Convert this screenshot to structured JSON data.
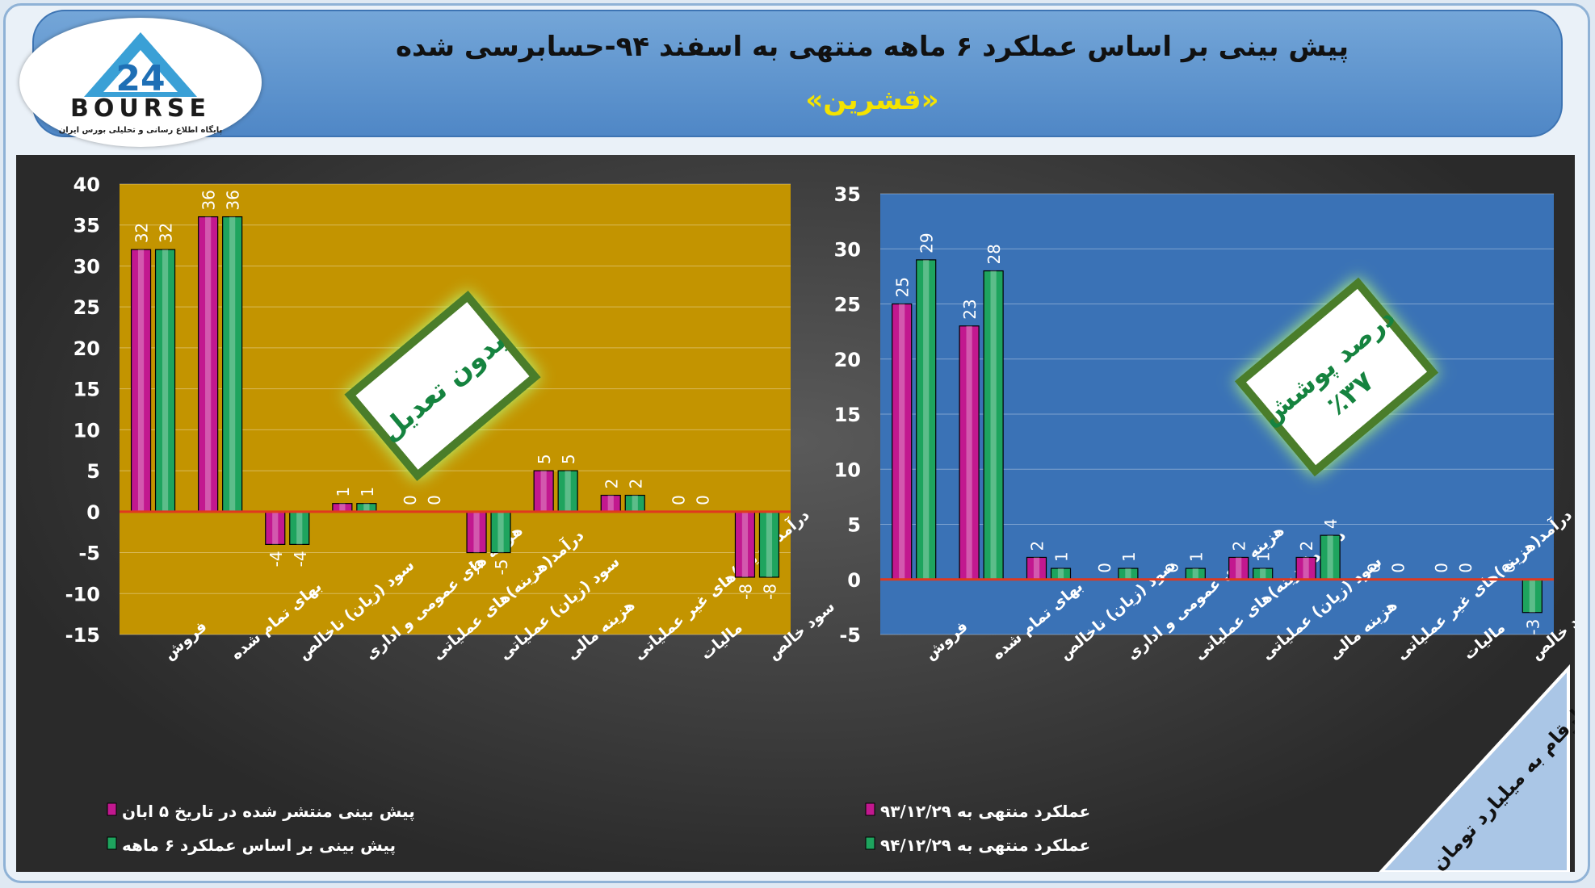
{
  "header": {
    "title": "پیش بینی بر اساس عملکرد ۶ ماهه منتهی به اسفند ۹۴-حسابرسی شده",
    "subtitle": "«قشرین»"
  },
  "logo": {
    "brand": "BOURSE",
    "number": "24",
    "tagline": "پایگاه اطلاع رسانی و تحلیلی بورس ایران"
  },
  "notes": {
    "left_badge": "بدون تعدیل",
    "right_badge_line1": "درصد پوشش",
    "right_badge_line2": "٪۳۷",
    "units_ribbon": "ارقام به میلیارد تومان"
  },
  "colors": {
    "magenta": "#c2188f",
    "green": "#1ea45e",
    "left_plot_bg": "#c39400",
    "right_plot_bg": "#3a72b6",
    "zero_line": "#e0391e",
    "ribbon": "#aac6e6"
  },
  "chart_data": [
    {
      "type": "bar",
      "categories": [
        "فروش",
        "بهای تمام شده",
        "سود (زیان) ناخالص",
        "هزینه های عمومی و اداری",
        "درآمد(هزینه)های عملیاتی",
        "سود (زیان) عملیاتی",
        "هزینه مالی",
        "درآمد(هزینه)های غیر عملیاتی",
        "مالیات",
        "سود خالص"
      ],
      "series": [
        {
          "name": "پیش بینی منتشر شده در تاریخ ۵ ابان",
          "values": [
            32,
            36,
            -4,
            1,
            0,
            -5,
            5,
            2,
            0,
            -8
          ]
        },
        {
          "name": "پیش بینی بر اساس عملکرد ۶ ماهه",
          "values": [
            32,
            36,
            -4,
            1,
            0,
            -5,
            5,
            2,
            0,
            -8
          ]
        }
      ],
      "ylim": [
        -15,
        40
      ],
      "yticks": [
        40,
        35,
        30,
        25,
        20,
        15,
        10,
        5,
        0,
        -5,
        -10,
        -15
      ],
      "grid": true,
      "legend": "bottom-left"
    },
    {
      "type": "bar",
      "categories": [
        "فروش",
        "بهای تمام شده",
        "سود (زیان) ناخالص",
        "هزینه های عمومی و اداری",
        "درآمد(هزینه)های عملیاتی",
        "سود (زیان) عملیاتی",
        "هزینه مالی",
        "درآمد(هزینه)های غیر عملیاتی",
        "مالیات",
        "سود خالص"
      ],
      "series": [
        {
          "name": "عملکرد منتهی به ۹۳/۱۲/۲۹",
          "values": [
            25,
            23,
            2,
            0,
            0,
            2,
            2,
            0,
            0,
            0
          ]
        },
        {
          "name": "عملکرد منتهی به ۹۴/۱۲/۲۹",
          "values": [
            29,
            28,
            1,
            1,
            1,
            1,
            4,
            0,
            0,
            -3
          ]
        }
      ],
      "ylim": [
        -5,
        35
      ],
      "yticks": [
        35,
        30,
        25,
        20,
        15,
        10,
        5,
        0,
        -5
      ],
      "grid": true,
      "legend": "bottom-left"
    }
  ]
}
